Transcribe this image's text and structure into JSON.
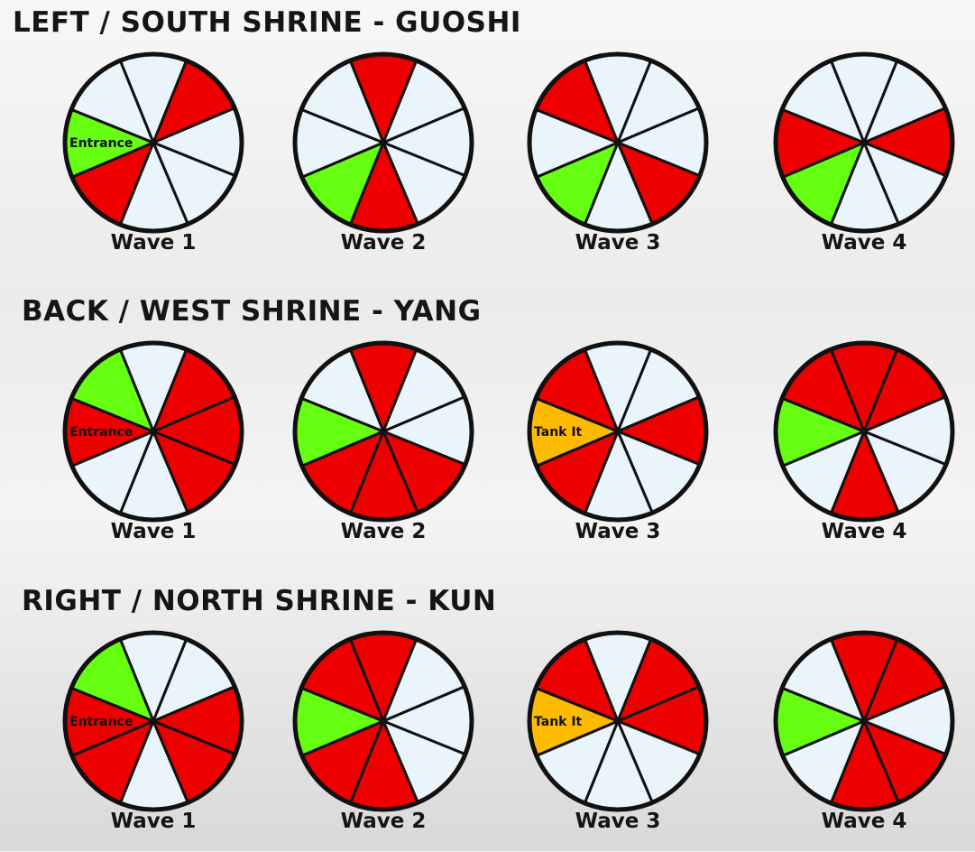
{
  "colors": {
    "red": "#ee0000",
    "white": "#eaf4fb",
    "green": "#66ff11",
    "yellow": "#ffbb00",
    "outline": "#111111"
  },
  "sections": [
    {
      "title": "LEFT / SOUTH SHRINE - GUOSHI",
      "wheels": [
        {
          "label": "Wave 1",
          "segments": [
            "white",
            "red",
            "white",
            "white",
            "white",
            "red",
            "green",
            "white"
          ],
          "tag": "Entrance",
          "tag_segment": 6
        },
        {
          "label": "Wave 2",
          "segments": [
            "red",
            "white",
            "white",
            "white",
            "red",
            "green",
            "white",
            "white"
          ]
        },
        {
          "label": "Wave 3",
          "segments": [
            "white",
            "white",
            "white",
            "red",
            "white",
            "green",
            "white",
            "red"
          ]
        },
        {
          "label": "Wave 4",
          "segments": [
            "white",
            "white",
            "red",
            "white",
            "white",
            "green",
            "red",
            "white"
          ]
        }
      ]
    },
    {
      "title": "BACK / WEST SHRINE - YANG",
      "wheels": [
        {
          "label": "Wave 1",
          "segments": [
            "white",
            "red",
            "red",
            "red",
            "white",
            "white",
            "red",
            "green"
          ],
          "tag": "Entrance",
          "tag_segment": 6
        },
        {
          "label": "Wave 2",
          "segments": [
            "red",
            "white",
            "white",
            "red",
            "red",
            "red",
            "green",
            "white"
          ]
        },
        {
          "label": "Wave 3",
          "segments": [
            "white",
            "white",
            "red",
            "white",
            "white",
            "red",
            "yellow",
            "red"
          ],
          "tag": "Tank It",
          "tag_segment": 6
        },
        {
          "label": "Wave 4",
          "segments": [
            "red",
            "red",
            "white",
            "white",
            "red",
            "white",
            "green",
            "red"
          ]
        }
      ]
    },
    {
      "title": "RIGHT / NORTH SHRINE - KUN",
      "wheels": [
        {
          "label": "Wave 1",
          "segments": [
            "white",
            "white",
            "red",
            "red",
            "white",
            "red",
            "red",
            "green"
          ],
          "tag": "Entrance",
          "tag_segment": 6
        },
        {
          "label": "Wave 2",
          "segments": [
            "red",
            "white",
            "white",
            "white",
            "red",
            "red",
            "green",
            "red"
          ]
        },
        {
          "label": "Wave 3",
          "segments": [
            "white",
            "red",
            "red",
            "white",
            "white",
            "white",
            "yellow",
            "red"
          ],
          "tag": "Tank It",
          "tag_segment": 6
        },
        {
          "label": "Wave 4",
          "segments": [
            "red",
            "red",
            "white",
            "red",
            "red",
            "white",
            "green",
            "white"
          ]
        }
      ]
    }
  ]
}
